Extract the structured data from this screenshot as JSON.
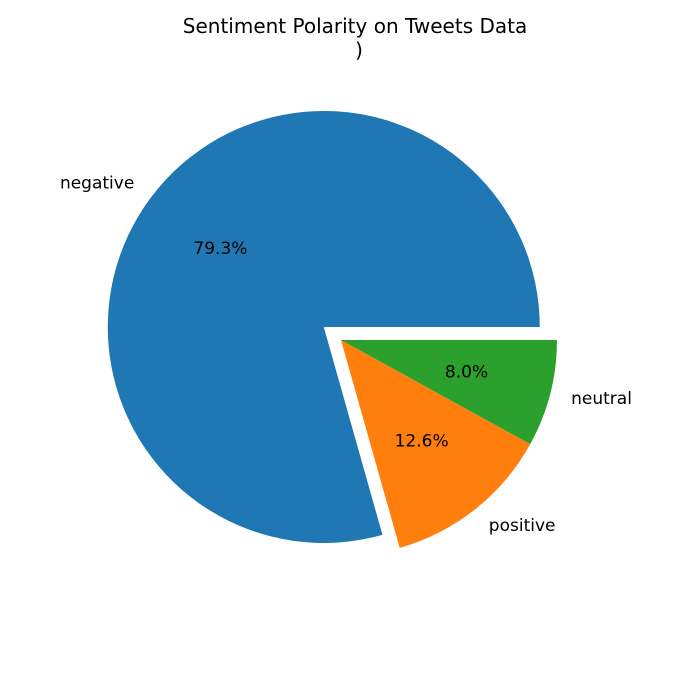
{
  "chart_data": {
    "type": "pie",
    "title": "Sentiment Polarity on Tweets Data",
    "subtitle": ")",
    "categories": [
      "negative",
      "positive",
      "neutral"
    ],
    "values": [
      79.3,
      12.6,
      8.0
    ],
    "percent_labels": [
      "79.3%",
      "12.6%",
      "8.0%"
    ],
    "colors": [
      "#1f77b4",
      "#ff7f0e",
      "#2ca02c"
    ],
    "exploded": [
      "negative"
    ],
    "start": "3 o'clock",
    "direction": "counterclockwise"
  }
}
